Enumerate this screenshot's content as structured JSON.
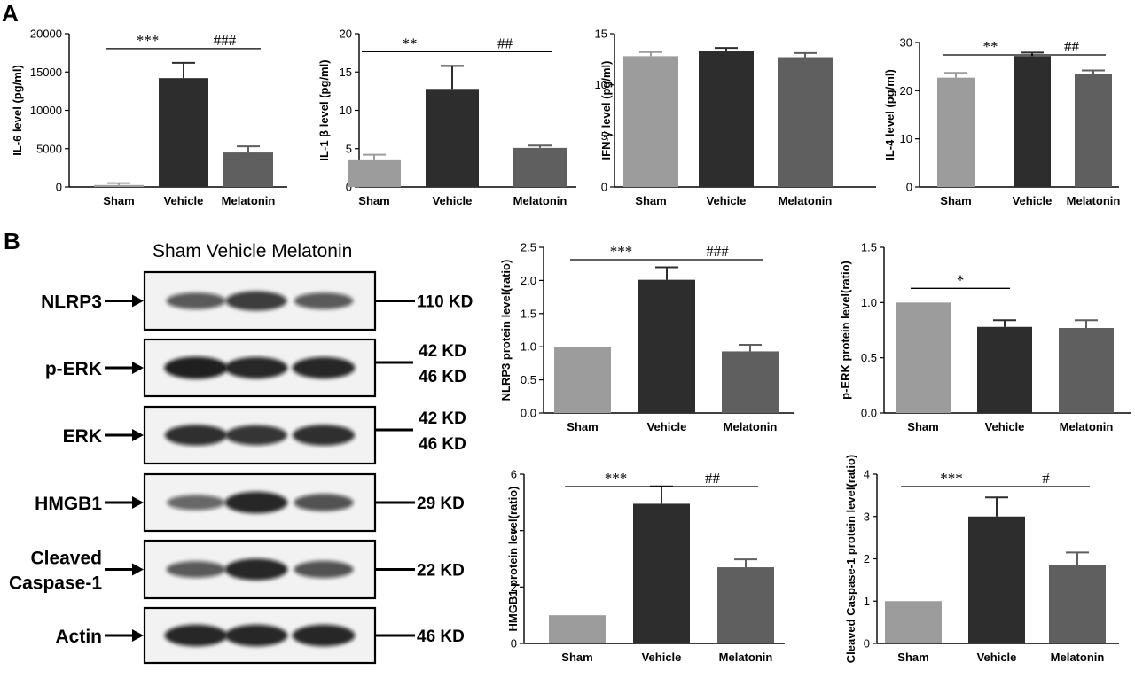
{
  "panels": {
    "a": "A",
    "b": "B"
  },
  "colors": {
    "sham": "#9c9c9c",
    "vehicle": "#2d2d2d",
    "melatonin": "#5f5f5f",
    "axis": "#000000"
  },
  "blot": {
    "header": "Sham Vehicle Melatonin",
    "rows": [
      {
        "label": [
          "NLRP3"
        ],
        "kd": [
          "110 KD"
        ],
        "intensity": [
          0.55,
          0.75,
          0.55
        ]
      },
      {
        "label": [
          "p-ERK"
        ],
        "kd": [
          "42 KD",
          "46 KD"
        ],
        "intensity": [
          0.95,
          0.9,
          0.9
        ]
      },
      {
        "label": [
          "ERK"
        ],
        "kd": [
          "42 KD",
          "46 KD"
        ],
        "intensity": [
          0.85,
          0.8,
          0.85
        ]
      },
      {
        "label": [
          "HMGB1"
        ],
        "kd": [
          "29 KD"
        ],
        "intensity": [
          0.45,
          0.9,
          0.6
        ]
      },
      {
        "label": [
          "Cleaved",
          "Caspase-1"
        ],
        "kd": [
          "22 KD"
        ],
        "intensity": [
          0.55,
          0.9,
          0.6
        ]
      },
      {
        "label": [
          "Actin"
        ],
        "kd": [
          "46 KD"
        ],
        "intensity": [
          0.9,
          0.9,
          0.9
        ]
      }
    ]
  },
  "chart_data": [
    {
      "type": "bar",
      "categories": [
        "Sham",
        "Vehicle",
        "Melatonin"
      ],
      "values": [
        250,
        14200,
        4500
      ],
      "errors": [
        250,
        2000,
        800
      ],
      "ylabel": "IL-6 level (pg/ml)",
      "ylim": [
        0,
        20000
      ],
      "yticks": [
        0,
        5000,
        10000,
        15000,
        20000
      ],
      "tick_labels": [
        "0",
        "5000",
        "10000",
        "15000",
        "20000"
      ],
      "significance": [
        {
          "label": "***",
          "from": 0,
          "to": 1
        },
        {
          "label": "###",
          "from": 1,
          "to": 2
        }
      ]
    },
    {
      "type": "bar",
      "categories": [
        "Sham",
        "Vehicle",
        "Melatonin"
      ],
      "values": [
        3.6,
        12.8,
        5.1
      ],
      "errors": [
        0.6,
        3.0,
        0.3
      ],
      "ylabel": "IL-1 β level (pg/ml)",
      "ylim": [
        0,
        20
      ],
      "yticks": [
        0,
        5,
        10,
        15,
        20
      ],
      "tick_labels": [
        "0",
        "5",
        "10",
        "15",
        "20"
      ],
      "significance": [
        {
          "label": "**",
          "from": 0,
          "to": 1
        },
        {
          "label": "##",
          "from": 1,
          "to": 2
        }
      ]
    },
    {
      "type": "bar",
      "categories": [
        "Sham",
        "Vehicle",
        "Melatonin"
      ],
      "values": [
        12.8,
        13.3,
        12.7
      ],
      "errors": [
        0.4,
        0.3,
        0.4
      ],
      "ylabel": "IFN-γ level (pg/ml)",
      "ylim": [
        0,
        15
      ],
      "yticks": [
        0,
        5,
        10,
        15
      ],
      "tick_labels": [
        "0",
        "5",
        "10",
        "15"
      ],
      "significance": []
    },
    {
      "type": "bar",
      "categories": [
        "Sham",
        "Vehicle",
        "Melatonin"
      ],
      "values": [
        22.7,
        27.2,
        23.5
      ],
      "errors": [
        1.0,
        0.7,
        0.7
      ],
      "ylabel": "IL-4 level (pg/ml)",
      "ylim": [
        0,
        30
      ],
      "yticks": [
        0,
        10,
        20,
        30
      ],
      "tick_labels": [
        "0",
        "10",
        "20",
        "30"
      ],
      "significance": [
        {
          "label": "**",
          "from": 0,
          "to": 1
        },
        {
          "label": "##",
          "from": 1,
          "to": 2
        }
      ]
    },
    {
      "type": "bar",
      "categories": [
        "Sham",
        "Vehicle",
        "Melatonin"
      ],
      "values": [
        1.0,
        2.01,
        0.93
      ],
      "errors": [
        0.0,
        0.19,
        0.1
      ],
      "ylabel": "NLRP3 protein level(ratio)",
      "ylim": [
        0,
        2.5
      ],
      "yticks": [
        0,
        0.5,
        1.0,
        1.5,
        2.0,
        2.5
      ],
      "tick_labels": [
        "0.0",
        "0.5",
        "1.0",
        "1.5",
        "2.0",
        "2.5"
      ],
      "significance": [
        {
          "label": "***",
          "from": 0,
          "to": 1
        },
        {
          "label": "###",
          "from": 1,
          "to": 2
        }
      ]
    },
    {
      "type": "bar",
      "categories": [
        "Sham",
        "Vehicle",
        "Melatonin"
      ],
      "values": [
        1.0,
        0.78,
        0.77
      ],
      "errors": [
        0.0,
        0.06,
        0.07
      ],
      "ylabel": "p-ERK protein level(ratio)",
      "ylim": [
        0,
        1.5
      ],
      "yticks": [
        0,
        0.5,
        1.0,
        1.5
      ],
      "tick_labels": [
        "0.0",
        "0.5",
        "1.0",
        "1.5"
      ],
      "significance": [
        {
          "label": "*",
          "from": 0,
          "to": 1
        }
      ]
    },
    {
      "type": "bar",
      "categories": [
        "Sham",
        "Vehicle",
        "Melatonin"
      ],
      "values": [
        1.0,
        4.95,
        2.7
      ],
      "errors": [
        0.0,
        0.62,
        0.28
      ],
      "ylabel": "HMGB1 protein level(ratio)",
      "ylim": [
        0,
        6
      ],
      "yticks": [
        0,
        2,
        4,
        6
      ],
      "tick_labels": [
        "0",
        "2",
        "4",
        "6"
      ],
      "significance": [
        {
          "label": "***",
          "from": 0,
          "to": 1
        },
        {
          "label": "##",
          "from": 1,
          "to": 2
        }
      ]
    },
    {
      "type": "bar",
      "categories": [
        "Sham",
        "Vehicle",
        "Melatonin"
      ],
      "values": [
        1.0,
        3.0,
        1.85
      ],
      "errors": [
        0.0,
        0.45,
        0.3
      ],
      "ylabel": "Cleaved Caspase-1 protein level(ratio)",
      "ylim": [
        0,
        4
      ],
      "yticks": [
        0,
        1,
        2,
        3,
        4
      ],
      "tick_labels": [
        "0",
        "1",
        "2",
        "3",
        "4"
      ],
      "significance": [
        {
          "label": "***",
          "from": 0,
          "to": 1
        },
        {
          "label": "#",
          "from": 1,
          "to": 2
        }
      ]
    }
  ]
}
